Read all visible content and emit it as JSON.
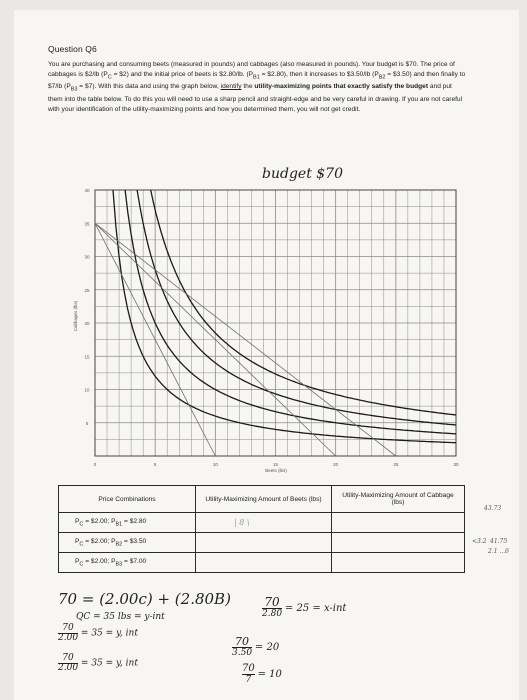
{
  "question": {
    "title": "Question Q6",
    "body_parts": [
      "You are purchasing and consuming beets (measured in pounds) and cabbages (also measured in pounds). Your budget is $70. The price of cabbages is $2/lb (P",
      "C",
      " = $2) and the initial price of beets is $2.80/lb. (P",
      "B1",
      " = $2.80), then it increases to $3.50/lb (P",
      "B2",
      " = $3.50) and then finally to $7/lb (P",
      "B3",
      " = $7). With this data and using the graph below, ",
      "identify",
      " the ",
      "utility-maximizing points that exactly satisfy the budget",
      " and put them into the table below. To do this you will need to use a sharp pencil and straight-edge and be very careful in drawing. If you are not careful with your identification of the utility-maximizing points and how you determined them, you will not get credit."
    ]
  },
  "handwritten_budget": "budget $70",
  "chart_data": {
    "type": "line",
    "xlabel": "Beets (lbs)",
    "ylabel": "Cabbages (lbs)",
    "xlim": [
      0,
      30
    ],
    "ylim": [
      0,
      40
    ],
    "x_ticks": [
      0,
      5,
      10,
      15,
      20,
      25,
      30
    ],
    "y_ticks": [
      5,
      10,
      15,
      20,
      25,
      30,
      35,
      40
    ],
    "grid": true,
    "budget_lines_drawn": [
      {
        "x": [
          0,
          25
        ],
        "y": [
          35,
          0
        ]
      },
      {
        "x": [
          0,
          20
        ],
        "y": [
          35,
          0
        ]
      },
      {
        "x": [
          0,
          10
        ],
        "y": [
          35,
          0
        ]
      }
    ],
    "indifference_curves": [
      {
        "k": 60
      },
      {
        "k": 100
      },
      {
        "k": 140
      },
      {
        "k": 185
      }
    ]
  },
  "table": {
    "headers": [
      "Price Combinations",
      "Utility-Maximizing Amount of Beets (lbs)",
      "Utility-Maximizing Amount of Cabbage (lbs)"
    ],
    "rows": [
      {
        "pc": "P",
        "pc_sub": "C",
        "pc_val": " = $2.00; P",
        "pb_sub": "B1",
        "pb_val": " = $2.80"
      },
      {
        "pc": "P",
        "pc_sub": "C",
        "pc_val": " = $2.00; P",
        "pb_sub": "B2",
        "pb_val": " = $3.50"
      },
      {
        "pc": "P",
        "pc_sub": "C",
        "pc_val": " = $2.00; P",
        "pb_sub": "B3",
        "pb_val": " = $7.00"
      }
    ]
  },
  "handwriting": {
    "eq_main": "70 = (2.00c) + (2.80B)",
    "frac1_num": "70",
    "frac1_den": "2.80",
    "frac1_res": "= 25 = x-int",
    "qc": "QC = 35 lbs = y-int",
    "frac2_num": "70",
    "frac2_den": "2.00",
    "frac2_res": "= 35 = y, int",
    "frac3_num": "70",
    "frac3_den": "3.50",
    "frac3_res": "= 20",
    "frac4_num": "70",
    "frac4_den": "2.00",
    "frac4_res": "= 35 = y, int",
    "frac5_num": "70",
    "frac5_den": "7",
    "frac5_res": "= 10",
    "cell_mark": "| 8 \\",
    "margin_1": "43.73",
    "margin_2": "<3.2",
    "margin_3": "41.75",
    "margin_4": "2.1 ...6"
  }
}
